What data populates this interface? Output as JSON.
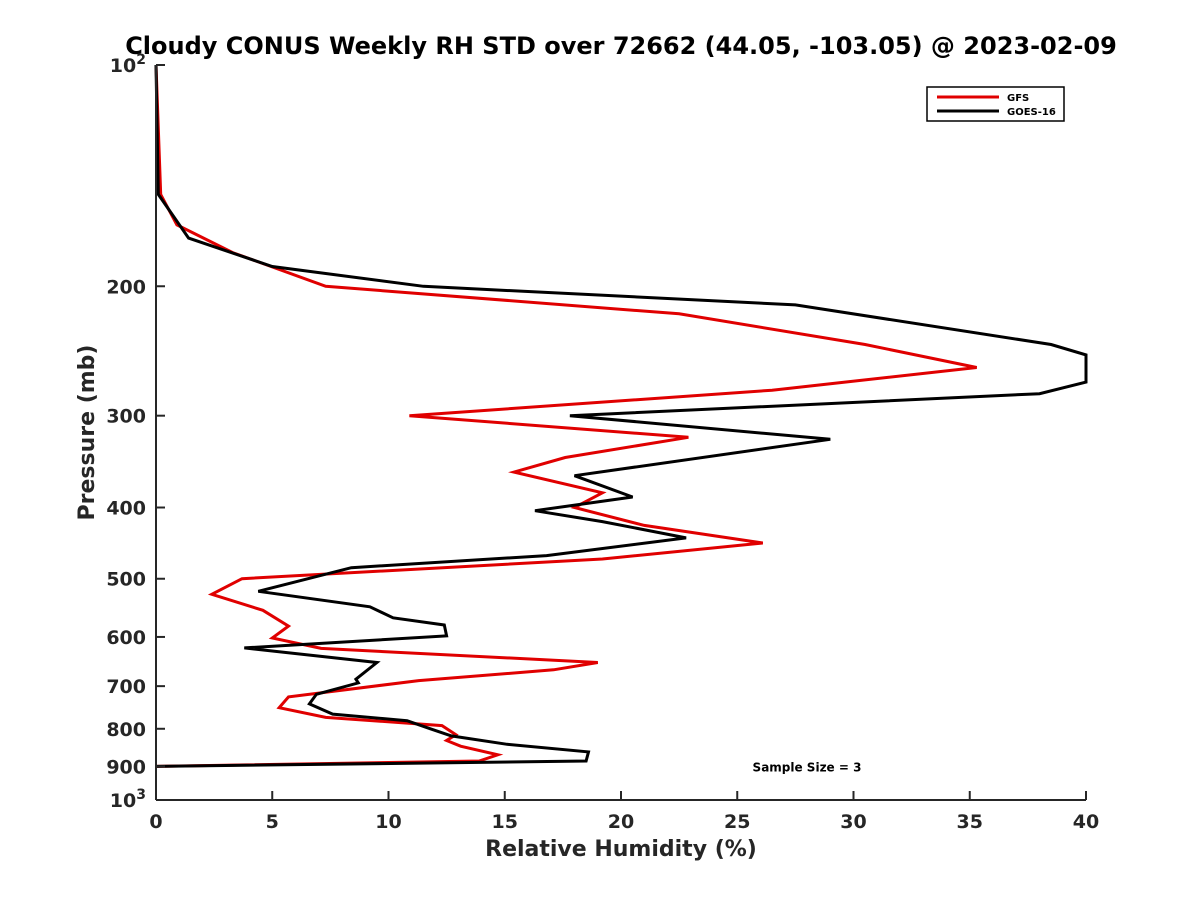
{
  "chart_data": {
    "type": "line",
    "title": "Cloudy CONUS Weekly RH STD over 72662 (44.05, -103.05) @ 2023-02-09",
    "xlabel": "Relative Humidity (%)",
    "ylabel": "Pressure (mb)",
    "xlim": [
      0,
      40
    ],
    "ylim": [
      100,
      1000
    ],
    "y_scale": "log",
    "y_reversed": true,
    "x_ticks": [
      "0",
      "5",
      "10",
      "15",
      "20",
      "25",
      "30",
      "35",
      "40"
    ],
    "y_ticks": [
      {
        "value": 100,
        "base": "10",
        "exp": "2"
      },
      {
        "value": 200,
        "label": "200"
      },
      {
        "value": 300,
        "label": "300"
      },
      {
        "value": 400,
        "label": "400"
      },
      {
        "value": 500,
        "label": "500"
      },
      {
        "value": 600,
        "label": "600"
      },
      {
        "value": 700,
        "label": "700"
      },
      {
        "value": 800,
        "label": "800"
      },
      {
        "value": 900,
        "label": "900"
      },
      {
        "value": 1000,
        "base": "10",
        "exp": "3"
      }
    ],
    "legend_position": "top-right",
    "grid": false,
    "series": [
      {
        "name": "GFS",
        "color": "#e00000",
        "points": [
          [
            0,
            100
          ],
          [
            0.2,
            150
          ],
          [
            0.9,
            165
          ],
          [
            3.3,
            180
          ],
          [
            7.3,
            200
          ],
          [
            22.5,
            218
          ],
          [
            30.5,
            240
          ],
          [
            35.3,
            258
          ],
          [
            26.5,
            277
          ],
          [
            10.9,
            300
          ],
          [
            22.9,
            321
          ],
          [
            17.6,
            342
          ],
          [
            15.4,
            358
          ],
          [
            19.2,
            382
          ],
          [
            18.0,
            400
          ],
          [
            21.0,
            423
          ],
          [
            26.1,
            447
          ],
          [
            19.2,
            470
          ],
          [
            3.7,
            500
          ],
          [
            2.4,
            525
          ],
          [
            4.6,
            552
          ],
          [
            5.7,
            580
          ],
          [
            5.0,
            602
          ],
          [
            7.1,
            622
          ],
          [
            19.0,
            650
          ],
          [
            17.1,
            665
          ],
          [
            11.3,
            688
          ],
          [
            5.7,
            724
          ],
          [
            5.3,
            749
          ],
          [
            7.3,
            772
          ],
          [
            12.3,
            792
          ],
          [
            12.9,
            815
          ],
          [
            12.5,
            830
          ],
          [
            13.1,
            845
          ],
          [
            14.7,
            868
          ],
          [
            13.9,
            885
          ],
          [
            0,
            900
          ]
        ]
      },
      {
        "name": "GOES-16",
        "color": "#000000",
        "points": [
          [
            0,
            100
          ],
          [
            0.1,
            150
          ],
          [
            1.4,
            172
          ],
          [
            5.0,
            188
          ],
          [
            11.5,
            200
          ],
          [
            27.5,
            212
          ],
          [
            38.5,
            240
          ],
          [
            40.0,
            248
          ],
          [
            40.0,
            270
          ],
          [
            38.0,
            280
          ],
          [
            17.8,
            300
          ],
          [
            29.0,
            323
          ],
          [
            18.0,
            362
          ],
          [
            20.5,
            387
          ],
          [
            16.3,
            404
          ],
          [
            19.2,
            418
          ],
          [
            22.8,
            440
          ],
          [
            16.8,
            465
          ],
          [
            8.4,
            483
          ],
          [
            4.4,
            520
          ],
          [
            9.2,
            546
          ],
          [
            10.2,
            565
          ],
          [
            12.4,
            578
          ],
          [
            12.5,
            598
          ],
          [
            3.8,
            621
          ],
          [
            9.5,
            650
          ],
          [
            8.6,
            685
          ],
          [
            8.7,
            693
          ],
          [
            6.9,
            718
          ],
          [
            6.6,
            740
          ],
          [
            7.6,
            764
          ],
          [
            10.8,
            780
          ],
          [
            11.8,
            800
          ],
          [
            12.7,
            818
          ],
          [
            15.1,
            840
          ],
          [
            18.6,
            860
          ],
          [
            18.5,
            885
          ],
          [
            0,
            900
          ]
        ]
      }
    ],
    "annotations": [
      {
        "text": "Sample Size = 3",
        "x": 28,
        "y": 900
      }
    ]
  }
}
